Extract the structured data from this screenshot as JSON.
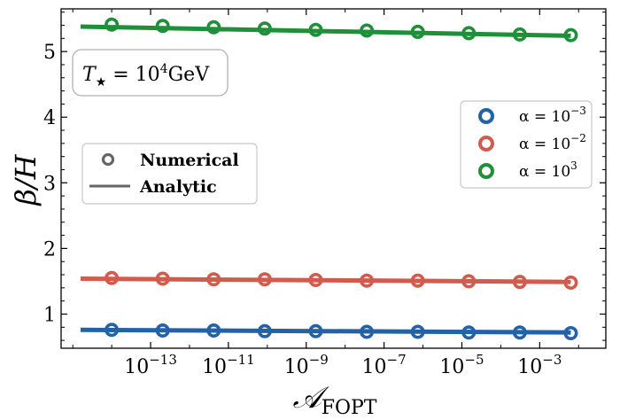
{
  "chart_data": {
    "type": "scatter",
    "x_scale": "log",
    "xlim_exp": [
      -15.3,
      -1.3
    ],
    "ylim": [
      0.48,
      5.65
    ],
    "xtick_exponents": [
      -13,
      -11,
      -9,
      -7,
      -5,
      -3
    ],
    "xtick_base": "10",
    "yticks": [
      1,
      2,
      3,
      4,
      5
    ],
    "xlabel": {
      "main": "𝒜",
      "sub": "FOPT"
    },
    "ylabel": "β/H",
    "annotation": {
      "base": "T",
      "sub": "★",
      "rest": " = 10",
      "sup": "4",
      "unit": "GeV"
    },
    "style_legend": {
      "numerical_label": "Numerical",
      "analytic_label": "Analytic",
      "location": "center-left"
    },
    "series_legend_location": "center-right",
    "series": [
      {
        "name": "α = 10⁻³",
        "legend": {
          "base": "α = 10",
          "sup": "−3"
        },
        "color": "#2462a8",
        "numerical_x_exp": [
          -14.0,
          -12.0,
          -10.0,
          -8.0,
          -6.0,
          -4.0,
          -3.0,
          -2.0
        ],
        "numerical_x_exp_fine": [
          -14.0,
          -12.0,
          -10.0,
          -8.0,
          -6.5,
          -5.5,
          -4.5,
          -3.0,
          -2.2
        ],
        "numerical_y": [
          0.76,
          0.75,
          0.75,
          0.74,
          0.74,
          0.73,
          0.73,
          0.72,
          0.72,
          0.71
        ],
        "analytic": {
          "x_exp": [
            -14.8,
            -2.2
          ],
          "y": [
            0.76,
            0.72
          ]
        }
      },
      {
        "name": "α = 10⁻²",
        "legend": {
          "base": "α = 10",
          "sup": "−2"
        },
        "color": "#d15b4c",
        "numerical_y": [
          1.55,
          1.54,
          1.53,
          1.53,
          1.52,
          1.51,
          1.51,
          1.5,
          1.49,
          1.48
        ],
        "analytic": {
          "x_exp": [
            -14.8,
            -2.2
          ],
          "y": [
            1.54,
            1.49
          ]
        }
      },
      {
        "name": "α = 10³",
        "legend": {
          "base": "α = 10",
          "sup": "3"
        },
        "color": "#1f8f3a",
        "numerical_y": [
          5.41,
          5.39,
          5.37,
          5.35,
          5.33,
          5.32,
          5.3,
          5.28,
          5.26,
          5.25
        ],
        "analytic": {
          "x_exp": [
            -14.8,
            -2.2
          ],
          "y": [
            5.38,
            5.24
          ]
        }
      }
    ],
    "numerical_x_exp_shared": [
      -14.0,
      -12.3,
      -10.5,
      -8.5,
      -6.7,
      -5.0,
      -3.5,
      -2.2,
      -1.4,
      -2.2
    ],
    "grid": false
  }
}
